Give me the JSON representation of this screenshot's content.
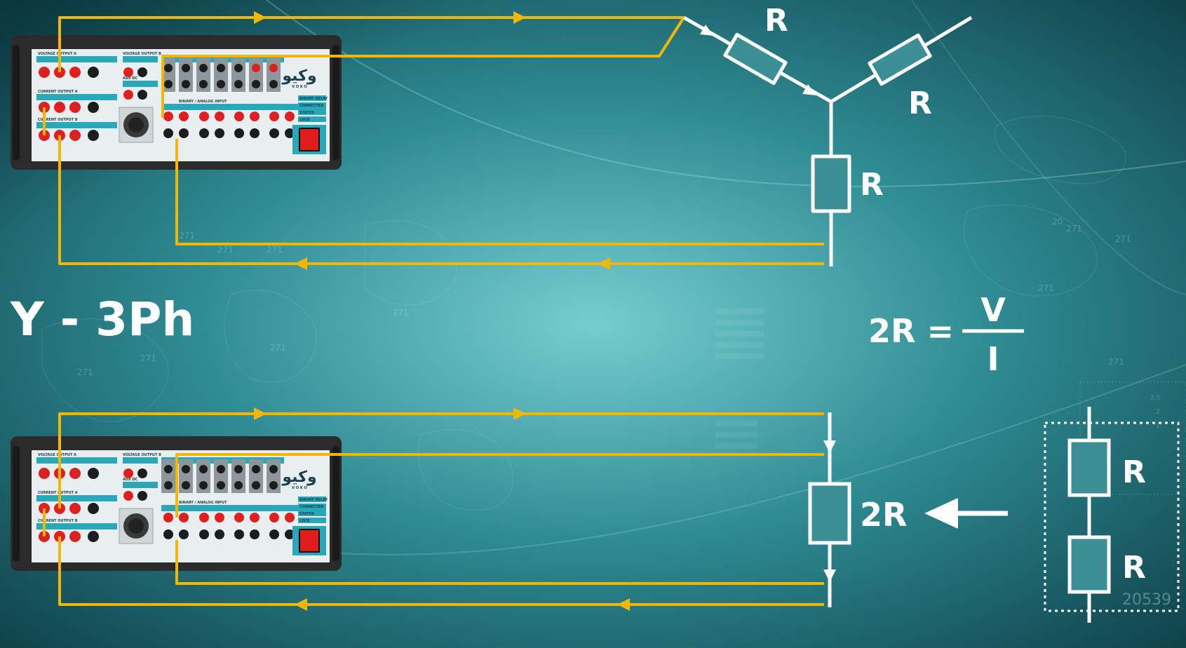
{
  "title": "Y - 3Ph",
  "colors": {
    "wire": "#f2b705",
    "circuit": "#ffffff",
    "background_center": "#6fc7c9",
    "background_edge": "#0e3f48",
    "device_body": "#2b2b2b",
    "device_panel": "#e9eef1",
    "panel_strip": "#28a8b8",
    "jack_red": "#e02020",
    "jack_black": "#1d1d1d",
    "power_switch": "#e11d1d"
  },
  "star_circuit": {
    "resistor_labels": [
      "R",
      "R",
      "R"
    ]
  },
  "formula": {
    "lhs": "2R =",
    "numerator": "V",
    "denominator": "I"
  },
  "series_circuit": {
    "resistor_label": "2R",
    "equivalent_labels": [
      "R",
      "R"
    ],
    "arrow_icon": "left-arrow-icon"
  },
  "device": {
    "logo": "وکیو",
    "logo_sub": "V O K O",
    "panel_labels": {
      "voltage_a": "VOLTAGE OUTPUT A",
      "voltage_b": "VOLTAGE OUTPUT B",
      "aux_dc": "AUX DC",
      "current_a": "CURRENT OUTPUT A",
      "current_b": "CURRENT OUTPUT B",
      "binary": "BINARY / ANALOG INPUT",
      "bin_relay": "BINARY RELAY",
      "connected": "CONNECTED",
      "status": "STATUS",
      "lock": "LOCK"
    }
  },
  "background_numbers": [
    "271",
    "271",
    "271",
    "271",
    "271",
    "271",
    "271",
    "271",
    "271",
    "20",
    "271",
    "271",
    "20539",
    "2,5",
    "2",
    "1"
  ]
}
